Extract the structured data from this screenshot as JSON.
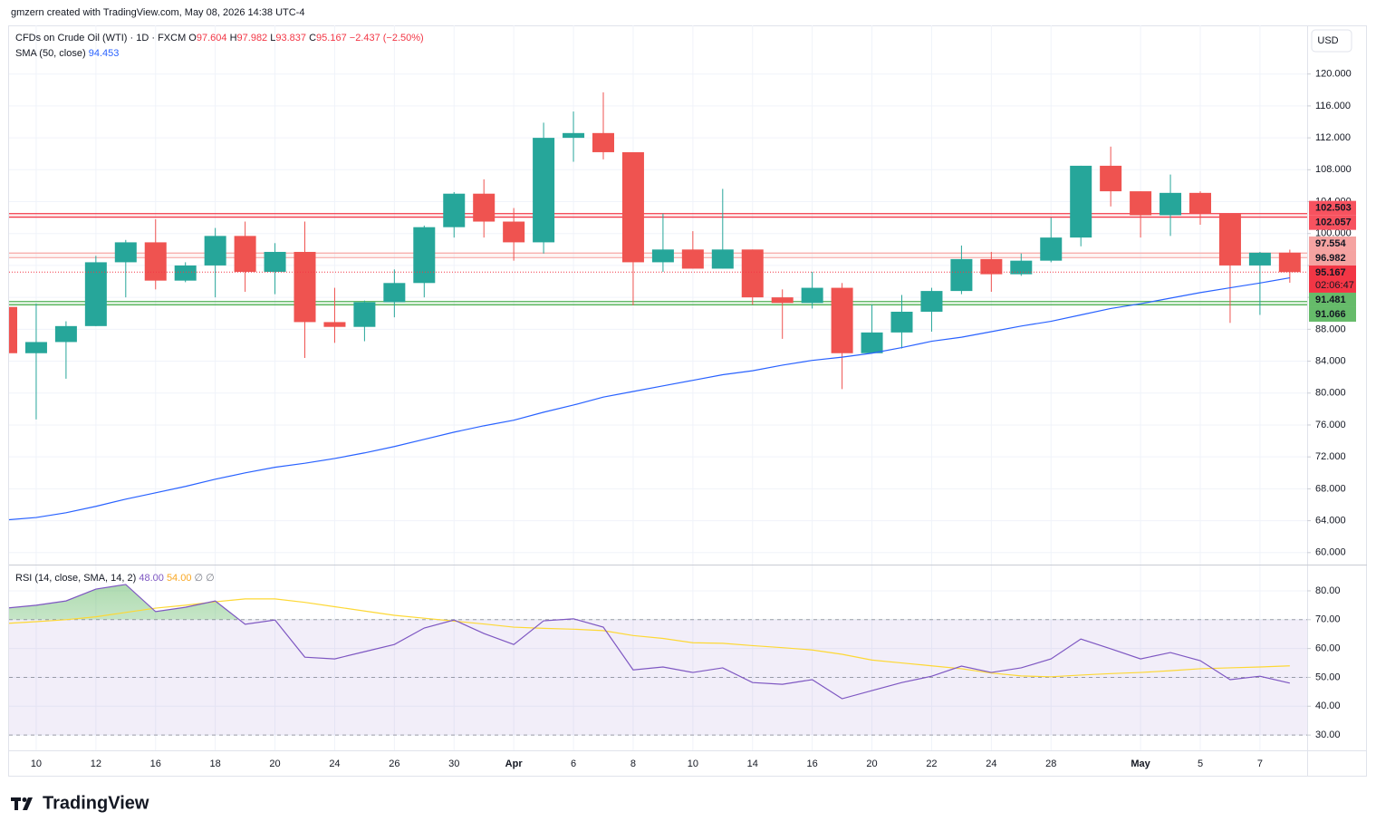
{
  "header": "gmzern created with TradingView.com, May 08, 2026 14:38 UTC-4",
  "footer": "TradingView",
  "chart_data": [
    {
      "type": "candlestick",
      "legend": {
        "symbol": "CFDs on Crude Oil (WTI) · 1D · FXCM",
        "o": "O",
        "h": "H",
        "l": "L",
        "c": "C",
        "change": "−2.437 (−2.50%)"
      },
      "currency": "USD",
      "countdown": "02:06:47",
      "categories": [
        null,
        "10",
        null,
        "12",
        null,
        "16",
        null,
        "18",
        null,
        "20",
        null,
        "24",
        null,
        "26",
        null,
        "30",
        null,
        "Apr",
        null,
        "6",
        null,
        "8",
        null,
        "10",
        null,
        "14",
        null,
        "16",
        null,
        "20",
        null,
        "22",
        null,
        "24",
        null,
        "28",
        null,
        null,
        "May",
        null,
        "5",
        null,
        "7",
        null
      ],
      "open": [
        90.8,
        85.0,
        86.4,
        88.4,
        96.4,
        98.9,
        94.1,
        96.0,
        99.7,
        95.2,
        97.7,
        88.9,
        88.3,
        91.4,
        93.8,
        100.8,
        105.0,
        101.5,
        98.9,
        112.0,
        112.6,
        110.2,
        96.4,
        98.0,
        95.6,
        98.0,
        92.0,
        91.3,
        93.2,
        85.0,
        87.6,
        90.2,
        92.8,
        96.8,
        94.9,
        96.6,
        99.5,
        108.5,
        105.3,
        102.3,
        105.1,
        102.5,
        96.0,
        97.604
      ],
      "high": [
        91.0,
        91.2,
        89.0,
        97.2,
        99.2,
        101.8,
        96.4,
        100.7,
        101.5,
        98.8,
        101.5,
        93.2,
        91.6,
        95.5,
        101.0,
        105.2,
        106.8,
        103.2,
        113.9,
        115.3,
        117.7,
        110.2,
        102.5,
        100.3,
        105.6,
        98.0,
        93.0,
        95.2,
        93.8,
        91.1,
        92.3,
        93.2,
        98.5,
        97.7,
        97.5,
        102.0,
        108.5,
        110.9,
        105.3,
        107.4,
        105.3,
        102.5,
        97.7,
        97.982
      ],
      "low": [
        85.0,
        76.7,
        81.8,
        88.4,
        92.0,
        93.0,
        93.9,
        92.0,
        92.7,
        92.4,
        84.4,
        86.3,
        86.5,
        89.5,
        92.0,
        99.5,
        99.5,
        96.6,
        97.5,
        109.0,
        109.3,
        91.0,
        95.2,
        95.6,
        95.6,
        91.1,
        86.8,
        90.6,
        80.5,
        85.0,
        85.6,
        87.7,
        92.4,
        92.7,
        94.7,
        96.4,
        98.4,
        103.4,
        99.5,
        99.7,
        101.1,
        88.8,
        89.8,
        93.837
      ],
      "close": [
        85.0,
        86.4,
        88.4,
        96.4,
        98.9,
        94.1,
        96.0,
        99.7,
        95.2,
        97.7,
        88.9,
        88.3,
        91.4,
        93.8,
        100.8,
        105.0,
        101.5,
        98.9,
        112.0,
        112.6,
        110.2,
        96.4,
        98.0,
        95.6,
        98.0,
        92.0,
        91.3,
        93.2,
        85.0,
        87.6,
        90.2,
        92.8,
        96.8,
        94.9,
        96.6,
        99.5,
        108.5,
        105.3,
        102.3,
        105.1,
        102.5,
        96.0,
        97.6,
        95.167
      ],
      "up_color": "#26a69a",
      "down_color": "#ef5350",
      "sma": {
        "label": "SMA (50, close)",
        "color": "#2962ff",
        "values": [
          64.1,
          64.4,
          65.0,
          65.8,
          66.7,
          67.5,
          68.3,
          69.2,
          70.0,
          70.7,
          71.2,
          71.8,
          72.5,
          73.3,
          74.2,
          75.1,
          75.9,
          76.6,
          77.6,
          78.5,
          79.5,
          80.2,
          80.9,
          81.6,
          82.3,
          82.8,
          83.5,
          84.1,
          84.5,
          85.0,
          85.7,
          86.5,
          87.0,
          87.7,
          88.4,
          89.0,
          89.8,
          90.6,
          91.2,
          91.9,
          92.6,
          93.2,
          93.8,
          94.453
        ]
      },
      "levels": [
        {
          "values": [
            102.503,
            102.057
          ],
          "color": "#f23645",
          "label_color": "#f7525f",
          "text_color": "#ffffff"
        },
        {
          "values": [
            97.554,
            96.982
          ],
          "color": "#f7a9a7",
          "label_color": "#f5a3a1",
          "text_color": "#ffffff"
        },
        {
          "values": [
            91.481,
            91.066
          ],
          "color": "#4caf50",
          "label_color": "#66bb6a",
          "text_color": "#131722"
        }
      ],
      "price_color": "#f23645",
      "ylim": [
        58.5,
        126.1
      ],
      "yticks": [
        {
          "value": 60,
          "label": "60.000"
        },
        {
          "value": 64,
          "label": "64.000"
        },
        {
          "value": 68,
          "label": "68.000"
        },
        {
          "value": 72,
          "label": "72.000"
        },
        {
          "value": 76,
          "label": "76.000"
        },
        {
          "value": 80,
          "label": "80.000"
        },
        {
          "value": 84,
          "label": "84.000"
        },
        {
          "value": 88,
          "label": "88.000"
        },
        {
          "value": 92,
          "label": "92.000"
        },
        {
          "value": 96,
          "label": "96.000"
        },
        {
          "value": 100,
          "label": "100.000"
        },
        {
          "value": 104,
          "label": "104.000"
        },
        {
          "value": 108,
          "label": "108.000"
        },
        {
          "value": 112,
          "label": "112.000"
        },
        {
          "value": 116,
          "label": "116.000"
        },
        {
          "value": 120,
          "label": "120.000"
        }
      ],
      "grid": true
    },
    {
      "type": "line",
      "legend": {
        "label": "RSI (14, close, SMA, 14, 2)",
        "readouts": [
          "48.00",
          "54.00"
        ],
        "extra": "∅ ∅"
      },
      "series": [
        {
          "color": "#7e57c2",
          "values": [
            74.0,
            75.0,
            76.5,
            80.6,
            82.2,
            72.8,
            74.3,
            76.5,
            68.4,
            69.9,
            57.0,
            56.4,
            58.9,
            61.4,
            67.1,
            69.9,
            65.2,
            61.4,
            69.6,
            70.3,
            67.4,
            52.6,
            53.6,
            51.7,
            53.3,
            48.2,
            47.6,
            49.2,
            42.6,
            45.4,
            48.2,
            50.4,
            53.9,
            51.7,
            53.3,
            56.4,
            63.3,
            59.9,
            56.4,
            58.6,
            55.8,
            49.2,
            50.4,
            48.0
          ]
        },
        {
          "color": "#fdd835",
          "values": [
            68.7,
            69.3,
            70.0,
            71.0,
            72.5,
            74.0,
            75.0,
            76.2,
            77.2,
            77.2,
            76.0,
            74.5,
            73.0,
            71.5,
            70.5,
            69.5,
            68.5,
            67.4,
            67.0,
            66.7,
            66.2,
            64.5,
            63.5,
            62.0,
            61.8,
            61.0,
            60.3,
            59.5,
            58.0,
            56.0,
            55.0,
            54.0,
            53.0,
            51.5,
            50.5,
            50.2,
            50.8,
            51.3,
            51.7,
            52.3,
            53.0,
            53.3,
            53.6,
            54.0
          ]
        }
      ],
      "bands": [
        70,
        50,
        30
      ],
      "band_color": "#7e57c2",
      "overbought_color": "#4caf50",
      "ylim": [
        24.7,
        89.1
      ],
      "yticks": [
        {
          "value": 30,
          "label": "30.00"
        },
        {
          "value": 40,
          "label": "40.00"
        },
        {
          "value": 50,
          "label": "50.00"
        },
        {
          "value": 60,
          "label": "60.00"
        },
        {
          "value": 70,
          "label": "70.00"
        },
        {
          "value": 80,
          "label": "80.00"
        }
      ],
      "grid": true
    }
  ]
}
